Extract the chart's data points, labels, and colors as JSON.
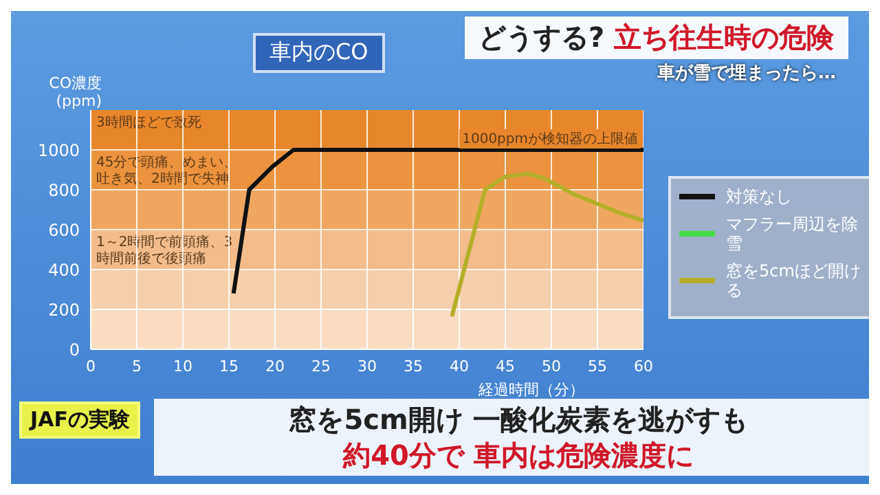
{
  "chart_data": {
    "type": "line",
    "title": "車内のCO",
    "xlabel": "経過時間（分）",
    "ylabel": "CO濃度\n(ppm)",
    "xlim": [
      0,
      60
    ],
    "xticks": [
      0,
      5,
      10,
      15,
      20,
      25,
      30,
      35,
      40,
      45,
      50,
      55,
      60
    ],
    "ylim": [
      0,
      1200
    ],
    "yticks": [
      0,
      200,
      400,
      600,
      800,
      1000
    ],
    "grid": true,
    "legend": "right",
    "marker": "none",
    "bands": [
      {
        "axis": "y",
        "from": 1000,
        "to": 1200,
        "label": "3時間ほどで致死",
        "color": "#e8862c"
      },
      {
        "axis": "y",
        "from": 800,
        "to": 1000,
        "label": "45分で頭痛、めまい、吐き気、2時間で失神",
        "color": "#eb933f"
      },
      {
        "axis": "y",
        "from": 600,
        "to": 800,
        "color": "#efa661"
      },
      {
        "axis": "y",
        "from": 400,
        "to": 600,
        "label": "1～2時間で前頭痛、3時間前後で後頭痛",
        "color": "#f3bc8a"
      },
      {
        "axis": "y",
        "from": 200,
        "to": 400,
        "color": "#f7cfaa"
      },
      {
        "axis": "y",
        "from": 0,
        "to": 200,
        "color": "#f9dcc2"
      }
    ],
    "series": [
      {
        "name": "対策なし",
        "color": "#111111",
        "x": [
          15.5,
          17.2,
          19.7,
          22,
          60
        ],
        "values": [
          280,
          800,
          915,
          1000,
          1000
        ]
      },
      {
        "name": "マフラー周辺を除雪",
        "color": "#44dd44"
      },
      {
        "name": "窓を5cmほど開ける",
        "color": "#b5ae2a",
        "x": [
          39.2,
          42.8,
          45,
          47.5,
          49.2,
          52.5,
          55,
          57.5,
          60
        ],
        "values": [
          165,
          800,
          866,
          880,
          857,
          776,
          729,
          682,
          645
        ]
      }
    ],
    "annotations": [
      "どうする?",
      "立ち往生時の危険",
      "車が雪で埋まったら…",
      "JAFの実験",
      "窓を5cm開け 一酸化炭素を逃がすも",
      "約40分で 車内は危険濃度に",
      "1000ppmが検知器の上限値"
    ]
  }
}
